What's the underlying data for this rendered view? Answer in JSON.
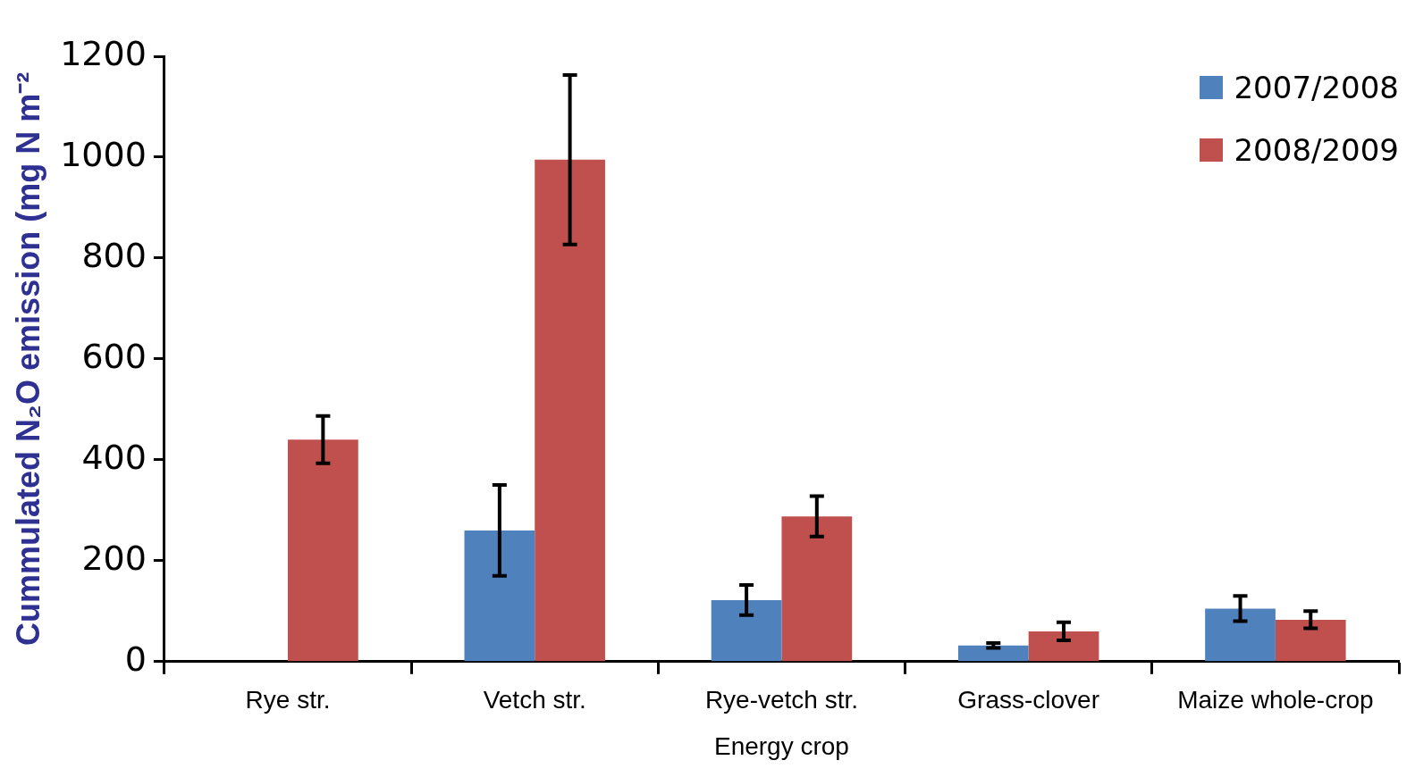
{
  "chart_data": {
    "type": "bar",
    "xlabel": "Energy crop",
    "ylabel": "Cummulated N₂O emission (mg N m⁻²",
    "categories": [
      "Rye str.",
      "Vetch str.",
      "Rye-vetch str.",
      "Grass-clover",
      "Maize whole-crop"
    ],
    "series": [
      {
        "name": "2007/2008",
        "color": "#4f81bd",
        "values": [
          null,
          260,
          122,
          32,
          105
        ],
        "errors": [
          null,
          90,
          30,
          5,
          25
        ]
      },
      {
        "name": "2008/2009",
        "color": "#c0504d",
        "values": [
          440,
          995,
          288,
          60,
          83
        ],
        "errors": [
          47,
          168,
          40,
          18,
          17
        ]
      }
    ],
    "ylim": [
      0,
      1200
    ],
    "yticks": [
      0,
      200,
      400,
      600,
      800,
      1000,
      1200
    ],
    "legend": "top right",
    "grid": false
  }
}
